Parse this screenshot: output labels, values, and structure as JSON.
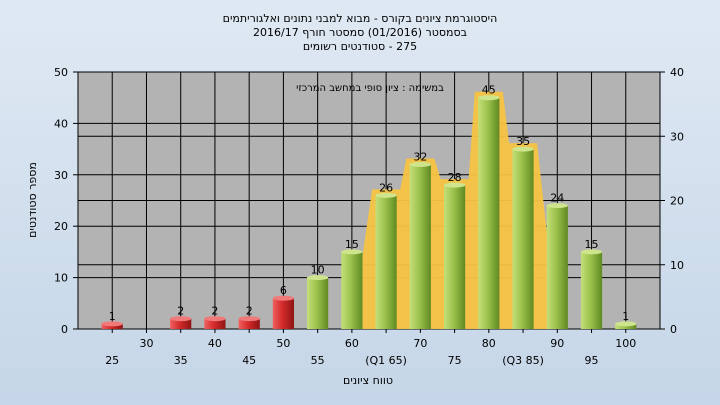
{
  "chart_data": {
    "type": "bar",
    "title_lines": [
      "היסטוגרמת ציונים בקורס - מבוא למבני נתונים ואלגוריתמים",
      "בסמסטר  (01/2016)  סמסטר חורף 2016/17",
      "275 - סטודנטים רשומים"
    ],
    "annotation": "במשימה : ציון סופי במחשב המרכזי",
    "xlabel": "טווח ציונים",
    "ylabel": "מספר סטודנטים",
    "categories": [
      25,
      30,
      35,
      40,
      45,
      50,
      55,
      60,
      65,
      70,
      75,
      80,
      85,
      90,
      95,
      100
    ],
    "x_tick_labels": [
      "25",
      "30",
      "35",
      "40",
      "45",
      "50",
      "55",
      "60",
      "(Q1 65)",
      "70",
      "75",
      "80",
      "(Q3 85)",
      "90",
      "95",
      "100"
    ],
    "values": [
      1,
      0,
      2,
      2,
      2,
      6,
      10,
      15,
      26,
      32,
      28,
      45,
      35,
      24,
      15,
      1
    ],
    "value_labels": [
      "1",
      "",
      "2",
      "2",
      "2",
      "6",
      "10",
      "15",
      "26",
      "32",
      "28",
      "45",
      "35",
      "24",
      "15",
      "1"
    ],
    "fail_threshold": 55,
    "interquartile_range": [
      65,
      85
    ],
    "ylim": [
      0,
      50
    ],
    "y_ticks": [
      0,
      10,
      20,
      30,
      40,
      50
    ],
    "y2lim": [
      0,
      40
    ],
    "y2_ticks": [
      0,
      10,
      20,
      30,
      40
    ],
    "grid": true,
    "colors": {
      "fail_bar": "#d42a2a",
      "pass_bar": "#9cc24c",
      "iqr_area": "#f7c443",
      "plot_bg": "#b3b3b3"
    }
  }
}
